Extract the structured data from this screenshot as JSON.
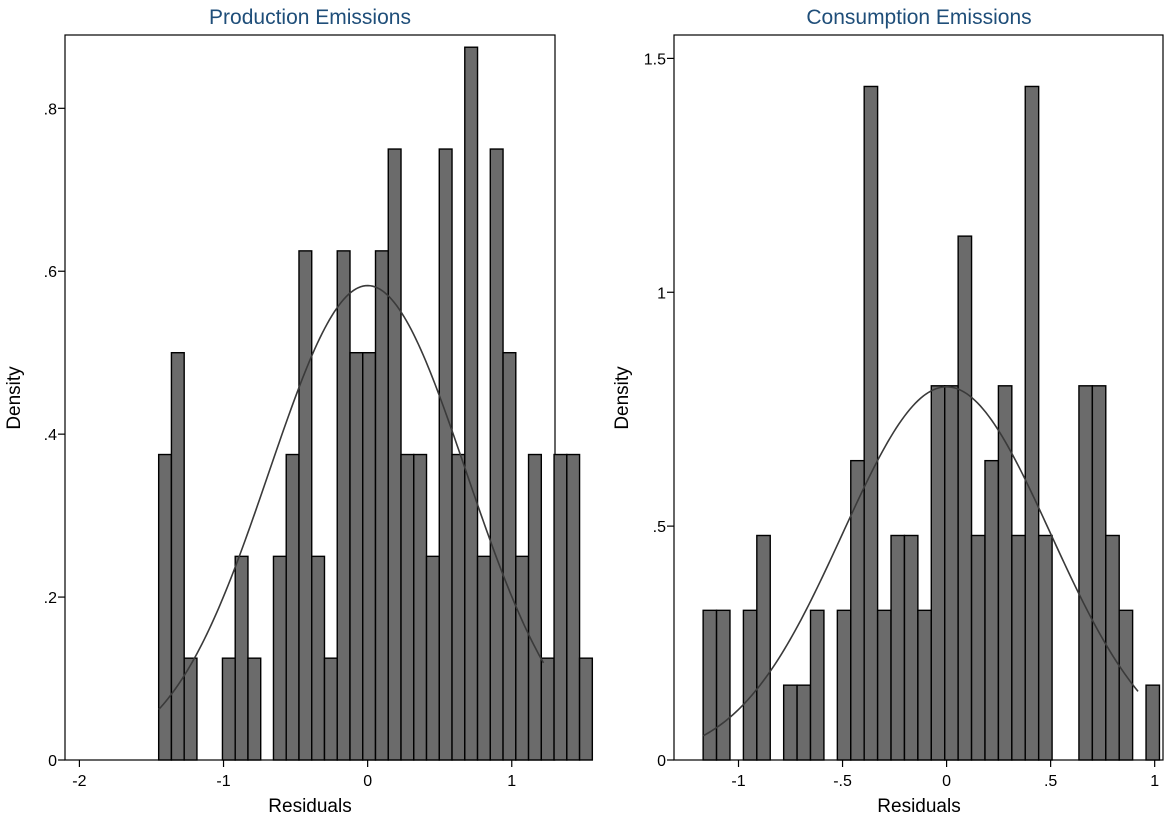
{
  "colors": {
    "bar_fill": "#6b6b6b",
    "bar_stroke": "#000000",
    "curve": "#3a3a3a",
    "title": "#1f4e79"
  },
  "chart_data": [
    {
      "type": "bar",
      "title": "Production Emissions",
      "xlabel": "Residuals",
      "ylabel": "Density",
      "xlim": [
        -2.1,
        1.3
      ],
      "ylim": [
        0,
        0.89
      ],
      "xticks": [
        -2,
        -1,
        0,
        1
      ],
      "xtick_labels": [
        "-2",
        "-1",
        "0",
        "1"
      ],
      "yticks": [
        0,
        0.2,
        0.4,
        0.6,
        0.8
      ],
      "ytick_labels": [
        "0",
        ".2",
        ".4",
        ".6",
        ".8"
      ],
      "bin_start": -1.45,
      "bin_width": 0.0885,
      "values": [
        0.375,
        0.5,
        0.125,
        0,
        0,
        0.125,
        0.25,
        0.125,
        0,
        0.25,
        0.375,
        0.625,
        0.25,
        0.125,
        0.625,
        0.5,
        0.5,
        0.625,
        0.75,
        0.375,
        0.375,
        0.25,
        0.75,
        0.375,
        0.875,
        0.25,
        0.75,
        0.5,
        0.25,
        0.375,
        0.125,
        0.375,
        0.375,
        0.125
      ],
      "overlay": {
        "type": "normal-density",
        "mean": 0.0,
        "sd": 0.685,
        "x_range": [
          -1.45,
          1.22
        ]
      },
      "grid": false
    },
    {
      "type": "bar",
      "title": "Consumption Emissions",
      "xlabel": "Residuals",
      "ylabel": "Density",
      "xlim": [
        -1.31,
        1.04
      ],
      "ylim": [
        0,
        1.55
      ],
      "xticks": [
        -1,
        -0.5,
        0,
        0.5,
        1
      ],
      "xtick_labels": [
        "-1",
        "-.5",
        "0",
        ".5",
        "1"
      ],
      "yticks": [
        0,
        0.5,
        1,
        1.5
      ],
      "ytick_labels": [
        "0",
        ".5",
        "1",
        "1.5"
      ],
      "bin_start": -1.17,
      "bin_width": 0.0645,
      "values": [
        0.32,
        0.32,
        0,
        0.32,
        0.48,
        0,
        0.16,
        0.16,
        0.32,
        0,
        0.32,
        0.64,
        1.44,
        0.32,
        0.48,
        0.48,
        0.32,
        0.8,
        0.8,
        1.12,
        0.48,
        0.64,
        0.8,
        0.48,
        1.44,
        0.48,
        0,
        0,
        0.8,
        0.8,
        0.48,
        0.32,
        0,
        0.16
      ],
      "overlay": {
        "type": "normal-density",
        "mean": 0.0,
        "sd": 0.5,
        "x_range": [
          -1.17,
          0.92
        ]
      },
      "grid": false
    }
  ]
}
